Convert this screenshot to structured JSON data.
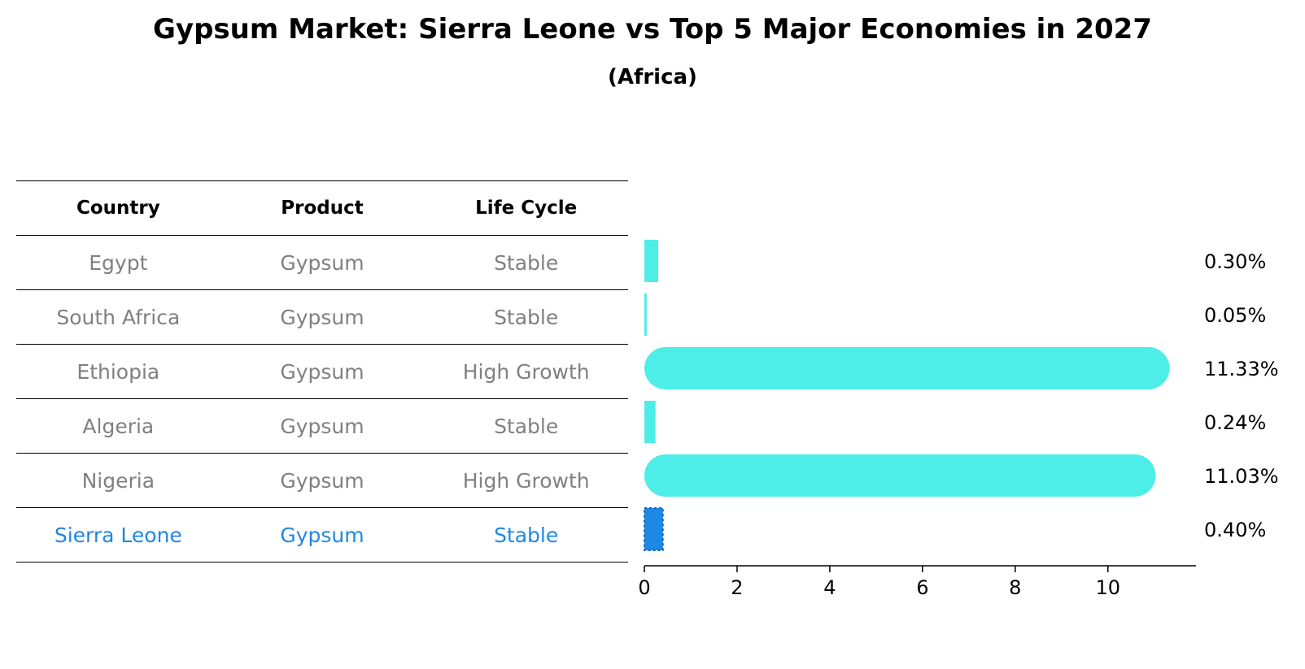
{
  "title": "Gypsum Market: Sierra Leone vs Top 5 Major Economies in 2027",
  "subtitle": "(Africa)",
  "table": {
    "headers": [
      "Country",
      "Product",
      "Life Cycle"
    ],
    "rows": [
      {
        "country": "Egypt",
        "product": "Gypsum",
        "life_cycle": "Stable"
      },
      {
        "country": "South Africa",
        "product": "Gypsum",
        "life_cycle": "Stable"
      },
      {
        "country": "Ethiopia",
        "product": "Gypsum",
        "life_cycle": "High Growth"
      },
      {
        "country": "Algeria",
        "product": "Gypsum",
        "life_cycle": "Stable"
      },
      {
        "country": "Nigeria",
        "product": "Gypsum",
        "life_cycle": "High Growth"
      },
      {
        "country": "Sierra Leone",
        "product": "Gypsum",
        "life_cycle": "Stable"
      }
    ]
  },
  "colors": {
    "bar": "#4dede8",
    "highlight": "#1e88e5",
    "muted_text": "#808080"
  },
  "chart_data": {
    "type": "bar",
    "orientation": "horizontal",
    "categories": [
      "Egypt",
      "South Africa",
      "Ethiopia",
      "Algeria",
      "Nigeria",
      "Sierra Leone"
    ],
    "values": [
      0.3,
      0.05,
      11.33,
      0.24,
      11.03,
      0.4
    ],
    "data_labels": [
      "0.30%",
      "0.05%",
      "11.33%",
      "0.24%",
      "11.03%",
      "0.40%"
    ],
    "highlight": "Sierra Leone",
    "xlim": [
      0,
      11.9
    ],
    "xticks": [
      0,
      2,
      4,
      6,
      8,
      10
    ],
    "grid": false
  }
}
